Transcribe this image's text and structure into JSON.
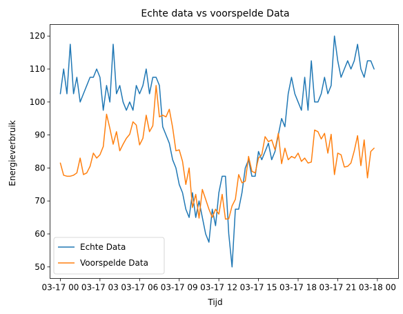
{
  "chart_data": {
    "type": "line",
    "title": "Echte data vs voorspelde Data",
    "xlabel": "Tijd",
    "ylabel": "Energieverbruik",
    "x_ticks": [
      {
        "hour": 0,
        "label": "03-17 00"
      },
      {
        "hour": 3,
        "label": "03-17 03"
      },
      {
        "hour": 6,
        "label": "03-17 06"
      },
      {
        "hour": 9,
        "label": "03-17 09"
      },
      {
        "hour": 12,
        "label": "03-17 12"
      },
      {
        "hour": 15,
        "label": "03-17 15"
      },
      {
        "hour": 18,
        "label": "03-17 18"
      },
      {
        "hour": 21,
        "label": "03-17 21"
      },
      {
        "hour": 24,
        "label": "03-18 00"
      }
    ],
    "y_ticks": [
      50,
      60,
      70,
      80,
      90,
      100,
      110,
      120
    ],
    "xlim": [
      -0.78,
      25.6
    ],
    "ylim": [
      46.5,
      123.5
    ],
    "grid": false,
    "legend_position": "lower-left",
    "hours": [
      0,
      0.25,
      0.5,
      0.75,
      1,
      1.25,
      1.5,
      1.75,
      2,
      2.25,
      2.5,
      2.75,
      3,
      3.25,
      3.5,
      3.75,
      4,
      4.25,
      4.5,
      4.75,
      5,
      5.25,
      5.5,
      5.75,
      6,
      6.25,
      6.5,
      6.75,
      7,
      7.25,
      7.5,
      7.75,
      8,
      8.25,
      8.5,
      8.75,
      9,
      9.25,
      9.5,
      9.75,
      10,
      10.25,
      10.5,
      10.75,
      11,
      11.25,
      11.5,
      11.75,
      12,
      12.25,
      12.5,
      12.75,
      13,
      13.25,
      13.5,
      13.75,
      14,
      14.25,
      14.5,
      14.75,
      15,
      15.25,
      15.5,
      15.75,
      16,
      16.25,
      16.5,
      16.75,
      17,
      17.25,
      17.5,
      17.75,
      18,
      18.25,
      18.5,
      18.75,
      19,
      19.25,
      19.5,
      19.75,
      20,
      20.25,
      20.5,
      20.75,
      21,
      21.25,
      21.5,
      21.75,
      22,
      22.25,
      22.5,
      22.75,
      23,
      23.25,
      23.5,
      23.75
    ],
    "series": [
      {
        "name": "Echte Data",
        "color": "#1f77b4",
        "values": [
          102.5,
          110,
          102.5,
          117.5,
          102.5,
          107.5,
          100,
          102.5,
          105,
          107.5,
          107.5,
          110,
          107.5,
          97.5,
          105,
          100,
          117.5,
          102.5,
          105,
          100,
          97.5,
          100,
          97.5,
          105,
          102.5,
          105,
          110,
          102.5,
          107.5,
          107.5,
          105,
          92.5,
          90,
          87.5,
          82.5,
          80,
          75,
          72.5,
          67.5,
          65,
          72.5,
          65,
          70,
          65,
          60,
          57.5,
          67.5,
          62.5,
          72.5,
          77.5,
          77.5,
          60,
          50,
          67.5,
          67.5,
          72.5,
          80,
          82.5,
          77.5,
          77.5,
          85,
          82.5,
          85,
          87.5,
          82.5,
          85,
          90,
          95,
          92.5,
          102.5,
          107.5,
          102.5,
          100,
          97.5,
          107.5,
          97.5,
          112.5,
          100,
          100,
          102.5,
          107.5,
          102.5,
          105,
          120,
          112.5,
          107.5,
          110,
          112.5,
          110,
          112.5,
          117.5,
          110,
          107.5,
          112.5,
          112.5,
          110
        ]
      },
      {
        "name": "Voorspelde Data",
        "color": "#ff7f0e",
        "values": [
          81.5,
          77.8,
          77.5,
          77.5,
          77.8,
          78.5,
          83,
          78,
          78.5,
          80.5,
          84.5,
          83,
          84,
          86.5,
          96.3,
          92,
          87.2,
          91,
          85.2,
          87.2,
          89,
          90.2,
          94,
          93,
          87,
          89,
          96,
          91,
          92.8,
          105,
          95.5,
          96,
          95.5,
          97.8,
          92.3,
          85.2,
          85.5,
          82,
          75,
          80,
          68,
          72,
          64.8,
          73.5,
          70.5,
          67.5,
          65,
          67.5,
          66,
          72,
          64.5,
          64.6,
          68.5,
          70.5,
          78,
          75.5,
          76,
          83.5,
          79,
          78.5,
          83,
          84,
          89.5,
          88,
          88.5,
          85.5,
          90.5,
          81.3,
          86,
          82.5,
          83.5,
          83,
          84.5,
          82,
          83,
          81.5,
          81.8,
          91.5,
          91,
          88.8,
          90.5,
          84.5,
          90.2,
          78,
          84.5,
          84,
          80.3,
          80.5,
          81.5,
          85.2,
          89.8,
          80.7,
          88.5,
          77,
          85,
          86
        ]
      }
    ]
  }
}
